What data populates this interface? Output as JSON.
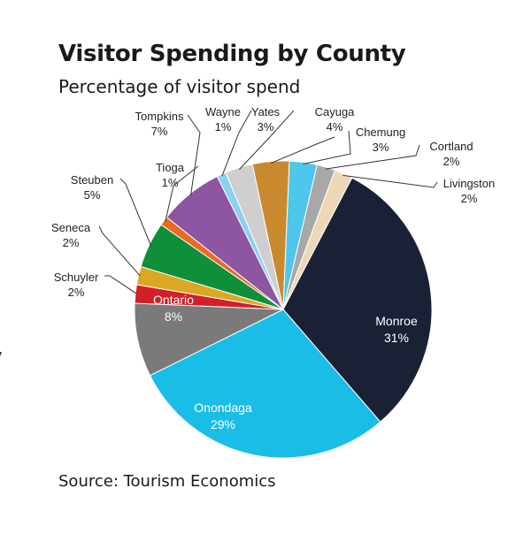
{
  "chart_data": {
    "type": "pie",
    "title": "Visitor Spending by County",
    "subtitle": "Percentage of visitor spend",
    "source": "Source: Tourism Economics",
    "slices": [
      {
        "label": "Cayuga",
        "value": 4,
        "value_label": "4%",
        "color": "#c9892f"
      },
      {
        "label": "Chemung",
        "value": 3,
        "value_label": "3%",
        "color": "#4ec7ea"
      },
      {
        "label": "Cortland",
        "value": 2,
        "value_label": "2%",
        "color": "#a8a8a8"
      },
      {
        "label": "Livingston",
        "value": 2,
        "value_label": "2%",
        "color": "#ecd8b6"
      },
      {
        "label": "Monroe",
        "value": 31,
        "value_label": "31%",
        "color": "#1b2135"
      },
      {
        "label": "Onondaga",
        "value": 29,
        "value_label": "29%",
        "color": "#1abde5"
      },
      {
        "label": "Ontario",
        "value": 8,
        "value_label": "8%",
        "color": "#7a7a7a"
      },
      {
        "label": "Schuyler",
        "value": 2,
        "value_label": "2%",
        "color": "#d21f28"
      },
      {
        "label": "Seneca",
        "value": 2,
        "value_label": "2%",
        "color": "#dba823"
      },
      {
        "label": "Steuben",
        "value": 5,
        "value_label": "5%",
        "color": "#0e8f3a"
      },
      {
        "label": "Tioga",
        "value": 1,
        "value_label": "1%",
        "color": "#ea6a26"
      },
      {
        "label": "Tompkins",
        "value": 7,
        "value_label": "7%",
        "color": "#8e55a2"
      },
      {
        "label": "Wayne",
        "value": 1,
        "value_label": "1%",
        "color": "#8ad1ef"
      },
      {
        "label": "Yates",
        "value": 3,
        "value_label": "3%",
        "color": "#cfcfcf"
      }
    ]
  }
}
